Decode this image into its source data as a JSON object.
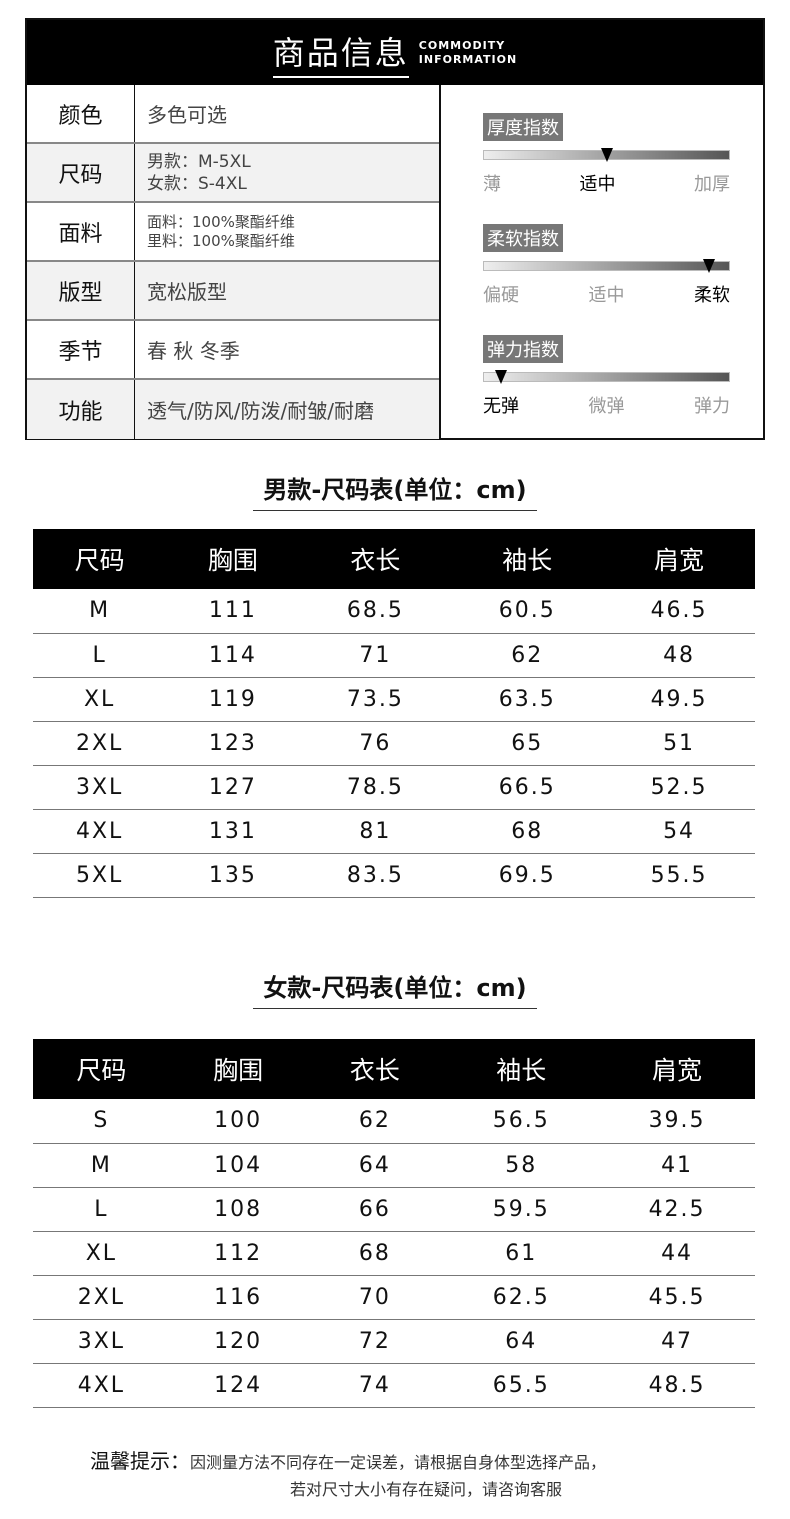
{
  "header": {
    "title_cn": "商品信息",
    "title_en_1": "COMMODITY",
    "title_en_2": "INFORMATION"
  },
  "info_rows": [
    {
      "key": "颜色",
      "lines": [
        "多色可选"
      ]
    },
    {
      "key": "尺码",
      "lines": [
        "男款：M-5XL",
        "女款：S-4XL"
      ]
    },
    {
      "key": "面料",
      "lines": [
        "面料：100%聚酯纤维",
        "里料：100%聚酯纤维"
      ]
    },
    {
      "key": "版型",
      "lines": [
        "宽松版型"
      ]
    },
    {
      "key": "季节",
      "lines": [
        "春 秋 冬季"
      ]
    },
    {
      "key": "功能",
      "lines": [
        "透气/防风/防泼/耐皱/耐磨"
      ]
    }
  ],
  "indices": [
    {
      "title": "厚度指数",
      "level_percent": 50,
      "labels": [
        "薄",
        "适中",
        "加厚"
      ],
      "selected": 1
    },
    {
      "title": "柔软指数",
      "level_percent": 92,
      "labels": [
        "偏硬",
        "适中",
        "柔软"
      ],
      "selected": 2
    },
    {
      "title": "弹力指数",
      "level_percent": 7,
      "labels": [
        "无弹",
        "微弹",
        "弹力"
      ],
      "selected": 0
    }
  ],
  "men_table": {
    "title": "男款-尺码表(单位：cm)",
    "headers": [
      "尺码",
      "胸围",
      "衣长",
      "袖长",
      "肩宽"
    ],
    "rows": [
      [
        "M",
        "111",
        "68.5",
        "60.5",
        "46.5"
      ],
      [
        "L",
        "114",
        "71",
        "62",
        "48"
      ],
      [
        "XL",
        "119",
        "73.5",
        "63.5",
        "49.5"
      ],
      [
        "2XL",
        "123",
        "76",
        "65",
        "51"
      ],
      [
        "3XL",
        "127",
        "78.5",
        "66.5",
        "52.5"
      ],
      [
        "4XL",
        "131",
        "81",
        "68",
        "54"
      ],
      [
        "5XL",
        "135",
        "83.5",
        "69.5",
        "55.5"
      ]
    ]
  },
  "women_table": {
    "title": "女款-尺码表(单位：cm)",
    "headers": [
      "尺码",
      "胸围",
      "衣长",
      "袖长",
      "肩宽"
    ],
    "rows": [
      [
        "S",
        "100",
        "62",
        "56.5",
        "39.5"
      ],
      [
        "M",
        "104",
        "64",
        "58",
        "41"
      ],
      [
        "L",
        "108",
        "66",
        "59.5",
        "42.5"
      ],
      [
        "XL",
        "112",
        "68",
        "61",
        "44"
      ],
      [
        "2XL",
        "116",
        "70",
        "62.5",
        "45.5"
      ],
      [
        "3XL",
        "120",
        "72",
        "64",
        "47"
      ],
      [
        "4XL",
        "124",
        "74",
        "65.5",
        "48.5"
      ]
    ]
  },
  "footer": {
    "label": "温馨提示：",
    "line1": "因测量方法不同存在一定误差，请根据自身体型选择产品，",
    "line2": "若对尺寸大小有存在疑问，请咨询客服"
  }
}
